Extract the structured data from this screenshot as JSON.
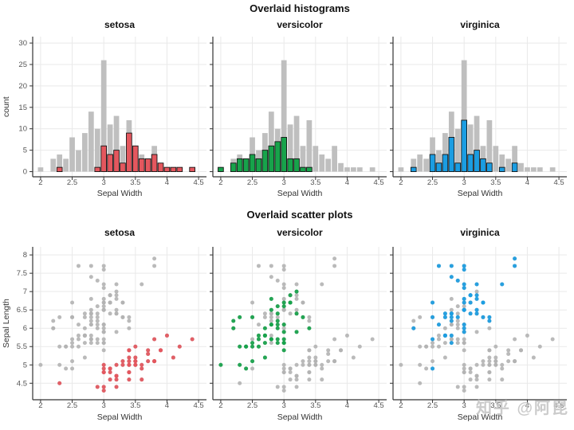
{
  "watermark": {
    "text": "知乎 @阿昆"
  },
  "colors": {
    "setosa": "#e4575e",
    "versicolor": "#17a34b",
    "virginica": "#1b9de2",
    "all_gray_bar": "#bfbfbf",
    "all_gray_point": "#b3b3b3",
    "bar_outline": "#141414",
    "grid": "#e9e9e9",
    "axis": "#333333",
    "tick_text": "#555555",
    "label_text": "#333333",
    "title_text": "#111111",
    "watermark_gray": "#c6c6c6"
  },
  "chart_data": [
    {
      "type": "bar",
      "role": "overlaid-faceted-histograms",
      "title": "Overlaid histograms",
      "facets": [
        "setosa",
        "versicolor",
        "virginica"
      ],
      "xlabel": "Sepal Width",
      "ylabel": "count",
      "xlim": [
        2,
        4.5
      ],
      "ylim": [
        0,
        30
      ],
      "x_ticks": [
        2,
        2.5,
        3,
        3.5,
        4,
        4.5
      ],
      "y_ticks": [
        0,
        5,
        10,
        15,
        20,
        25,
        30
      ],
      "bin_step": 0.1,
      "background_series": "all (gray)",
      "grid": true,
      "counts": {
        "all": {
          "2": 1,
          "2.2": 3,
          "2.3": 4,
          "2.4": 3,
          "2.5": 8,
          "2.6": 5,
          "2.7": 9,
          "2.8": 14,
          "2.9": 10,
          "3": 26,
          "3.1": 11,
          "3.2": 13,
          "3.3": 6,
          "3.4": 12,
          "3.5": 6,
          "3.6": 4,
          "3.7": 3,
          "3.8": 6,
          "3.9": 2,
          "4": 1,
          "4.1": 1,
          "4.2": 1,
          "4.4": 1
        },
        "setosa": {
          "2.3": 1,
          "2.9": 1,
          "3": 6,
          "3.1": 4,
          "3.2": 5,
          "3.3": 2,
          "3.4": 9,
          "3.5": 6,
          "3.6": 3,
          "3.7": 3,
          "3.8": 4,
          "3.9": 2,
          "4": 1,
          "4.1": 1,
          "4.2": 1,
          "4.4": 1
        },
        "versicolor": {
          "2": 1,
          "2.2": 2,
          "2.3": 3,
          "2.4": 3,
          "2.5": 4,
          "2.6": 3,
          "2.7": 5,
          "2.8": 6,
          "2.9": 7,
          "3": 8,
          "3.1": 3,
          "3.2": 3,
          "3.3": 1,
          "3.4": 1
        },
        "virginica": {
          "2.2": 1,
          "2.5": 4,
          "2.6": 2,
          "2.7": 4,
          "2.8": 8,
          "2.9": 2,
          "3": 12,
          "3.1": 4,
          "3.2": 5,
          "3.3": 3,
          "3.4": 2,
          "3.6": 1,
          "3.8": 2
        }
      }
    },
    {
      "type": "scatter",
      "role": "overlaid-faceted-scatter",
      "title": "Overlaid scatter plots",
      "facets": [
        "setosa",
        "versicolor",
        "virginica"
      ],
      "xlabel": "Sepal Width",
      "ylabel": "Sepal Length",
      "xlim": [
        2,
        4.5
      ],
      "ylim": [
        4.5,
        8
      ],
      "x_ticks": [
        2,
        2.5,
        3,
        3.5,
        4,
        4.5
      ],
      "y_ticks": [
        4.5,
        5,
        5.5,
        6,
        6.5,
        7,
        7.5,
        8
      ],
      "background_series": "all species (gray)",
      "grid": true,
      "series": [
        {
          "name": "setosa",
          "points": [
            [
              3.5,
              5.1
            ],
            [
              3.0,
              4.9
            ],
            [
              3.2,
              4.7
            ],
            [
              3.1,
              4.6
            ],
            [
              3.6,
              5.0
            ],
            [
              3.9,
              5.4
            ],
            [
              3.4,
              4.6
            ],
            [
              3.4,
              5.0
            ],
            [
              2.9,
              4.4
            ],
            [
              3.1,
              4.9
            ],
            [
              3.7,
              5.4
            ],
            [
              3.4,
              4.8
            ],
            [
              3.0,
              4.8
            ],
            [
              3.0,
              4.3
            ],
            [
              4.0,
              5.8
            ],
            [
              4.4,
              5.7
            ],
            [
              3.9,
              5.4
            ],
            [
              3.5,
              5.1
            ],
            [
              3.8,
              5.7
            ],
            [
              3.8,
              5.1
            ],
            [
              3.4,
              5.4
            ],
            [
              3.7,
              5.1
            ],
            [
              3.6,
              4.6
            ],
            [
              3.3,
              5.1
            ],
            [
              3.4,
              4.8
            ],
            [
              3.0,
              5.0
            ],
            [
              3.4,
              5.0
            ],
            [
              3.5,
              5.2
            ],
            [
              3.4,
              5.2
            ],
            [
              3.2,
              4.7
            ],
            [
              3.1,
              4.8
            ],
            [
              3.4,
              5.4
            ],
            [
              4.1,
              5.2
            ],
            [
              4.2,
              5.5
            ],
            [
              3.1,
              4.9
            ],
            [
              3.2,
              5.0
            ],
            [
              3.5,
              5.5
            ],
            [
              3.6,
              4.9
            ],
            [
              3.0,
              4.4
            ],
            [
              3.4,
              5.1
            ],
            [
              3.5,
              5.0
            ],
            [
              2.3,
              4.5
            ],
            [
              3.2,
              4.4
            ],
            [
              3.5,
              5.0
            ],
            [
              3.8,
              5.1
            ],
            [
              3.0,
              4.8
            ],
            [
              3.8,
              5.1
            ],
            [
              3.2,
              4.6
            ],
            [
              3.7,
              5.3
            ],
            [
              3.3,
              5.0
            ]
          ]
        },
        {
          "name": "versicolor",
          "points": [
            [
              3.2,
              7.0
            ],
            [
              3.2,
              6.4
            ],
            [
              3.1,
              6.9
            ],
            [
              2.3,
              5.5
            ],
            [
              2.8,
              6.5
            ],
            [
              2.8,
              5.7
            ],
            [
              3.3,
              6.3
            ],
            [
              2.4,
              4.9
            ],
            [
              2.9,
              6.6
            ],
            [
              2.7,
              5.2
            ],
            [
              2.0,
              5.0
            ],
            [
              3.0,
              5.9
            ],
            [
              2.2,
              6.0
            ],
            [
              2.9,
              6.1
            ],
            [
              2.9,
              5.6
            ],
            [
              3.1,
              6.7
            ],
            [
              3.0,
              5.6
            ],
            [
              2.7,
              5.8
            ],
            [
              2.2,
              6.2
            ],
            [
              2.5,
              5.6
            ],
            [
              3.2,
              5.9
            ],
            [
              2.8,
              6.1
            ],
            [
              2.5,
              6.3
            ],
            [
              2.8,
              6.1
            ],
            [
              2.9,
              6.4
            ],
            [
              3.0,
              6.6
            ],
            [
              2.8,
              6.8
            ],
            [
              3.0,
              6.7
            ],
            [
              2.9,
              6.0
            ],
            [
              2.6,
              5.7
            ],
            [
              2.4,
              5.5
            ],
            [
              2.4,
              5.5
            ],
            [
              2.7,
              5.8
            ],
            [
              2.7,
              6.0
            ],
            [
              3.0,
              5.4
            ],
            [
              3.4,
              6.0
            ],
            [
              3.1,
              6.7
            ],
            [
              2.3,
              6.3
            ],
            [
              3.0,
              5.6
            ],
            [
              2.5,
              5.5
            ],
            [
              2.6,
              5.5
            ],
            [
              3.0,
              6.1
            ],
            [
              2.6,
              5.8
            ],
            [
              2.3,
              5.0
            ],
            [
              2.7,
              5.6
            ],
            [
              3.0,
              5.7
            ],
            [
              2.9,
              5.7
            ],
            [
              2.9,
              6.2
            ],
            [
              2.5,
              5.1
            ],
            [
              2.8,
              5.7
            ]
          ]
        },
        {
          "name": "virginica",
          "points": [
            [
              3.3,
              6.3
            ],
            [
              2.7,
              5.8
            ],
            [
              3.0,
              7.1
            ],
            [
              2.9,
              6.3
            ],
            [
              3.0,
              6.5
            ],
            [
              3.0,
              7.6
            ],
            [
              2.5,
              4.9
            ],
            [
              2.9,
              7.3
            ],
            [
              2.5,
              6.7
            ],
            [
              3.6,
              7.2
            ],
            [
              3.2,
              6.5
            ],
            [
              2.7,
              6.4
            ],
            [
              3.0,
              6.8
            ],
            [
              2.5,
              5.7
            ],
            [
              2.8,
              5.8
            ],
            [
              3.2,
              6.4
            ],
            [
              3.0,
              6.5
            ],
            [
              3.8,
              7.7
            ],
            [
              2.6,
              7.7
            ],
            [
              2.2,
              6.0
            ],
            [
              3.2,
              6.9
            ],
            [
              2.8,
              5.6
            ],
            [
              2.8,
              7.7
            ],
            [
              2.7,
              6.3
            ],
            [
              3.3,
              6.7
            ],
            [
              3.2,
              7.2
            ],
            [
              2.8,
              6.2
            ],
            [
              3.0,
              6.1
            ],
            [
              2.8,
              6.4
            ],
            [
              3.0,
              7.2
            ],
            [
              2.8,
              7.4
            ],
            [
              3.8,
              7.9
            ],
            [
              2.8,
              6.4
            ],
            [
              2.8,
              6.3
            ],
            [
              2.6,
              6.1
            ],
            [
              3.0,
              7.7
            ],
            [
              3.4,
              6.3
            ],
            [
              3.1,
              6.4
            ],
            [
              3.0,
              6.0
            ],
            [
              3.1,
              6.9
            ],
            [
              3.1,
              6.7
            ],
            [
              3.1,
              6.9
            ],
            [
              2.7,
              5.8
            ],
            [
              3.2,
              6.8
            ],
            [
              3.3,
              6.7
            ],
            [
              3.0,
              6.7
            ],
            [
              2.5,
              6.3
            ],
            [
              3.0,
              6.5
            ],
            [
              3.4,
              6.2
            ],
            [
              3.0,
              5.9
            ]
          ]
        }
      ]
    }
  ]
}
